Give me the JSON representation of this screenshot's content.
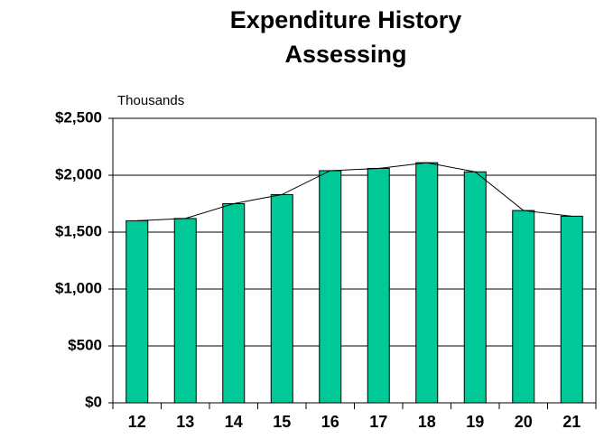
{
  "chart_data": {
    "type": "bar",
    "title": [
      "Expenditure History",
      "Assessing"
    ],
    "y_axis_label": "Thousands",
    "categories": [
      "12",
      "13",
      "14",
      "15",
      "16",
      "17",
      "18",
      "19",
      "20",
      "21"
    ],
    "values": [
      1600,
      1620,
      1750,
      1830,
      2040,
      2060,
      2110,
      2030,
      1690,
      1640
    ],
    "color": "#00c896",
    "line_overlay": true,
    "ylim": [
      0,
      2500
    ],
    "yticks": [
      {
        "value": 0,
        "label": "$0"
      },
      {
        "value": 500,
        "label": "$500"
      },
      {
        "value": 1000,
        "label": "$1,000"
      },
      {
        "value": 1500,
        "label": "$1,500"
      },
      {
        "value": 2000,
        "label": "$2,000"
      },
      {
        "value": 2500,
        "label": "$2,500"
      }
    ],
    "grid": true
  }
}
